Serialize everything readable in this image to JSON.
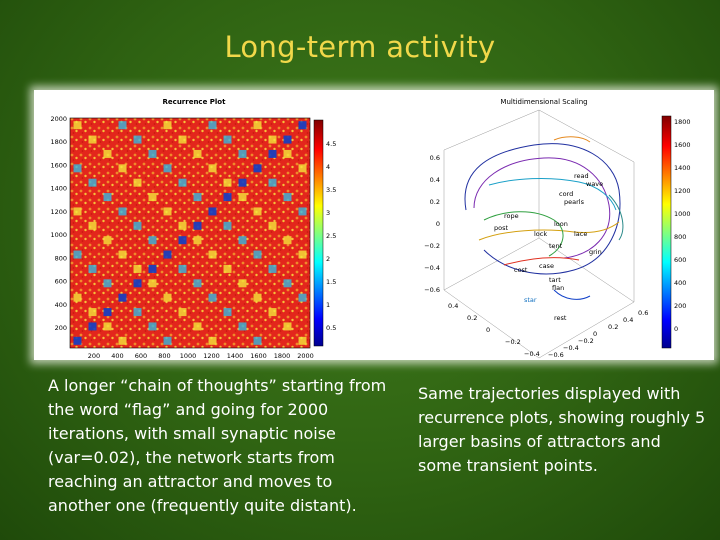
{
  "slide": {
    "title": "Long-term activity",
    "caption_left": "A longer “chain of thoughts” starting from the word “flag” and going for 2000 iterations, with small synaptic noise (var=0.02), the network starts from reaching an attractor and moves to another one (frequently quite distant).",
    "caption_right": "Same trajectories displayed with recurrence plots, showing roughly 5 larger basins of attractors and some transient points."
  },
  "recurrence_plot": {
    "title": "Recurrence Plot",
    "y_ticks": [
      "2000",
      "1800",
      "1600",
      "1400",
      "1200",
      "1000",
      "800",
      "600",
      "400",
      "200"
    ],
    "x_ticks": [
      "200",
      "400",
      "600",
      "800",
      "1000",
      "1200",
      "1400",
      "1600",
      "1800",
      "2000"
    ],
    "colorbar_ticks": [
      "4.5",
      "4",
      "3.5",
      "3",
      "2.5",
      "2",
      "1.5",
      "1",
      "0.5"
    ],
    "colors": {
      "high": "#e3261c",
      "low": "#1040c8",
      "mid": "#f4e63a"
    }
  },
  "mds_plot": {
    "title": "Multidimensional Scaling",
    "z_ticks": [
      "0.6",
      "0.4",
      "0.2",
      "0",
      "−0.2",
      "−0.4",
      "−0.6"
    ],
    "x_ticks": [
      "0.4",
      "0.2",
      "0",
      "−0.2",
      "−0.4"
    ],
    "y_ticks": [
      "0.6",
      "0.4",
      "0.2",
      "0",
      "−0.2",
      "−0.4",
      "−0.6"
    ],
    "colorbar_ticks": [
      "1800",
      "1600",
      "1400",
      "1200",
      "1000",
      "800",
      "600",
      "400",
      "200",
      "0"
    ],
    "words": [
      "read",
      "wave",
      "cord",
      "pearls",
      "rope",
      "post",
      "lock",
      "loon",
      "lace",
      "tent",
      "grin",
      "cost",
      "case",
      "tart",
      "flan",
      "star",
      "rest"
    ],
    "colors": {
      "ring": "#2030a0"
    }
  }
}
